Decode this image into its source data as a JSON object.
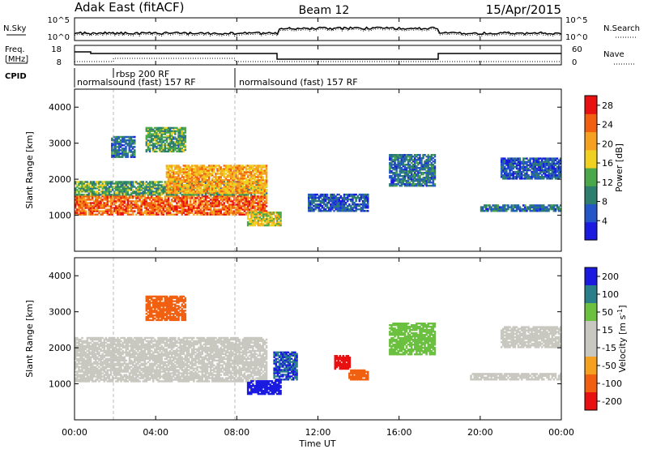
{
  "header": {
    "station": "Adak East (fitACF)",
    "beam": "Beam 12",
    "date": "15/Apr/2015"
  },
  "noise_panel": {
    "left_label": "N.Sky",
    "right_label": "N.Search",
    "tick_top": "10^5",
    "tick_bottom": "10^0"
  },
  "freq_panel": {
    "left_label_1": "Freq.",
    "left_label_2": "[MHz]",
    "right_label": "Nave",
    "freq_ticks": [
      "18",
      "8"
    ],
    "nave_ticks": [
      "60",
      "0"
    ]
  },
  "cpid": {
    "label": "CPID",
    "segments": [
      {
        "start_h": 0,
        "end_h": 8,
        "text": "normalsound (fast) 157 RF"
      },
      {
        "start_h": 1.6,
        "end_h": 8,
        "text": "rbsp 200 RF"
      },
      {
        "start_h": 8,
        "end_h": 24,
        "text": "normalsound (fast) 157 RF"
      }
    ]
  },
  "time_axis": {
    "label": "Time UT",
    "ticks": [
      "00:00",
      "04:00",
      "08:00",
      "12:00",
      "16:00",
      "20:00",
      "00:00"
    ]
  },
  "colors": {
    "power_scale": [
      "#1a1ae0",
      "#2456c8",
      "#2e7e6e",
      "#4aa84a",
      "#f0d020",
      "#f5a020",
      "#f06010",
      "#e81010"
    ],
    "velocity_scale": [
      "#e81010",
      "#f06010",
      "#f5a020",
      "#c8c8c0",
      "#c8c8c0",
      "#6cc040",
      "#2a7e8a",
      "#1a1ae0"
    ]
  },
  "chart_data": [
    {
      "type": "heatmap",
      "title": "",
      "xlabel": "Time UT",
      "ylabel": "Slant Range [km]",
      "xlim": [
        0,
        24
      ],
      "ylim": [
        0,
        4500
      ],
      "yticks": [
        "1000",
        "2000",
        "3000",
        "4000"
      ],
      "colorbar": {
        "label": "Power [dB]",
        "ticks": [
          "4",
          "8",
          "12",
          "16",
          "20",
          "24",
          "28"
        ],
        "range": [
          0,
          30
        ]
      },
      "regions": [
        {
          "t0": 0.0,
          "t1": 9.5,
          "r0": 1000,
          "r1": 1550,
          "value": 24
        },
        {
          "t0": 0.0,
          "t1": 9.5,
          "r0": 1550,
          "r1": 1950,
          "value": 12
        },
        {
          "t0": 4.5,
          "t1": 9.5,
          "r0": 1600,
          "r1": 2400,
          "value": 20
        },
        {
          "t0": 1.8,
          "t1": 3.0,
          "r0": 2600,
          "r1": 3200,
          "value": 8
        },
        {
          "t0": 3.5,
          "t1": 5.5,
          "r0": 2750,
          "r1": 3450,
          "value": 12
        },
        {
          "t0": 8.5,
          "t1": 10.2,
          "r0": 700,
          "r1": 1100,
          "value": 16
        },
        {
          "t0": 11.5,
          "t1": 14.5,
          "r0": 1100,
          "r1": 1600,
          "value": 6
        },
        {
          "t0": 15.5,
          "t1": 17.8,
          "r0": 1800,
          "r1": 2700,
          "value": 8
        },
        {
          "t0": 20.0,
          "t1": 24.0,
          "r0": 1100,
          "r1": 1300,
          "value": 8
        },
        {
          "t0": 21.0,
          "t1": 24.0,
          "r0": 2000,
          "r1": 2600,
          "value": 6
        }
      ]
    },
    {
      "type": "heatmap",
      "title": "",
      "xlabel": "Time UT",
      "ylabel": "Slant Range [km]",
      "xlim": [
        0,
        24
      ],
      "ylim": [
        0,
        4500
      ],
      "yticks": [
        "1000",
        "2000",
        "3000",
        "4000"
      ],
      "colorbar": {
        "label": "Velocity [m s-1]",
        "ticks": [
          "200",
          "100",
          "50",
          "15",
          "-15",
          "-50",
          "-100",
          "-200"
        ]
      },
      "regions": [
        {
          "t0": 0.0,
          "t1": 9.5,
          "r0": 1050,
          "r1": 2300,
          "value": 0
        },
        {
          "t0": 3.5,
          "t1": 5.5,
          "r0": 2750,
          "r1": 3450,
          "value": -60
        },
        {
          "t0": 9.8,
          "t1": 11.0,
          "r0": 1100,
          "r1": 1900,
          "value": 150
        },
        {
          "t0": 8.5,
          "t1": 10.2,
          "r0": 700,
          "r1": 1100,
          "value": 180
        },
        {
          "t0": 12.8,
          "t1": 13.6,
          "r0": 1400,
          "r1": 1800,
          "value": -220
        },
        {
          "t0": 13.5,
          "t1": 14.5,
          "r0": 1100,
          "r1": 1400,
          "value": -60
        },
        {
          "t0": 15.5,
          "t1": 17.8,
          "r0": 1800,
          "r1": 2700,
          "value": 40
        },
        {
          "t0": 19.5,
          "t1": 24.0,
          "r0": 1100,
          "r1": 1300,
          "value": 0
        },
        {
          "t0": 21.0,
          "t1": 24.0,
          "r0": 2000,
          "r1": 2600,
          "value": 0
        }
      ]
    }
  ]
}
